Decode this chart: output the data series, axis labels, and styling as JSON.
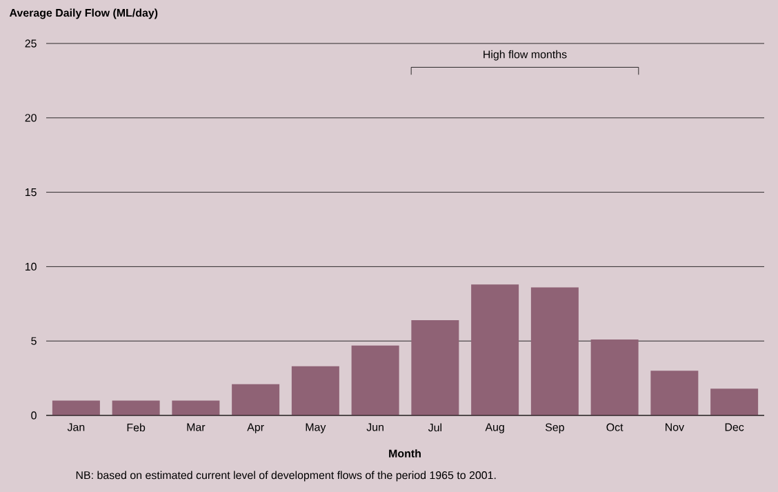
{
  "chart_data": {
    "type": "bar",
    "ylabel": "Average Daily Flow (ML/day)",
    "xlabel": "Month",
    "categories": [
      "Jan",
      "Feb",
      "Mar",
      "Apr",
      "May",
      "Jun",
      "Jul",
      "Aug",
      "Sep",
      "Oct",
      "Nov",
      "Dec"
    ],
    "values": [
      1.0,
      1.0,
      1.0,
      2.1,
      3.3,
      4.7,
      6.4,
      8.8,
      8.6,
      5.1,
      3.0,
      1.8
    ],
    "color": "#8f6275",
    "ylim": [
      0,
      25
    ],
    "yticks": [
      0,
      5,
      10,
      15,
      20,
      25
    ],
    "grid": "y",
    "annotations": [
      "High flow months",
      "NB: based on estimated current level of development flows of the period 1965 to 2001."
    ]
  }
}
